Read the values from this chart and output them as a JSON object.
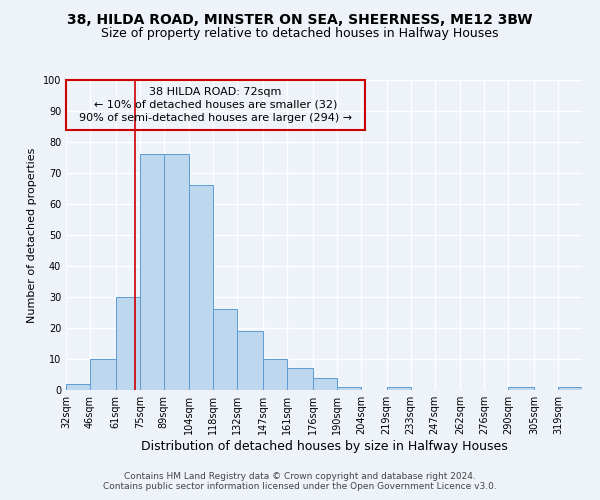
{
  "title": "38, HILDA ROAD, MINSTER ON SEA, SHEERNESS, ME12 3BW",
  "subtitle": "Size of property relative to detached houses in Halfway Houses",
  "xlabel": "Distribution of detached houses by size in Halfway Houses",
  "ylabel": "Number of detached properties",
  "bin_edges": [
    32,
    46,
    61,
    75,
    89,
    104,
    118,
    132,
    147,
    161,
    176,
    190,
    204,
    219,
    233,
    247,
    262,
    276,
    290,
    305,
    319
  ],
  "bin_labels": [
    "32sqm",
    "46sqm",
    "61sqm",
    "75sqm",
    "89sqm",
    "104sqm",
    "118sqm",
    "132sqm",
    "147sqm",
    "161sqm",
    "176sqm",
    "190sqm",
    "204sqm",
    "219sqm",
    "233sqm",
    "247sqm",
    "262sqm",
    "276sqm",
    "290sqm",
    "305sqm",
    "319sqm"
  ],
  "counts": [
    2,
    10,
    30,
    76,
    76,
    66,
    26,
    19,
    10,
    7,
    4,
    1,
    0,
    1,
    0,
    0,
    0,
    0,
    1,
    0,
    1
  ],
  "bar_color": "#bdd7ee",
  "bar_edge_color": "#5b9bd5",
  "vline_x": 72,
  "vline_color": "#cc0000",
  "annotation_line1": "38 HILDA ROAD: 72sqm",
  "annotation_line2": "← 10% of detached houses are smaller (32)",
  "annotation_line3": "90% of semi-detached houses are larger (294) →",
  "box_edge_color": "#cc0000",
  "ylim": [
    0,
    100
  ],
  "yticks": [
    0,
    10,
    20,
    30,
    40,
    50,
    60,
    70,
    80,
    90,
    100
  ],
  "background_color": "#eef2f9",
  "grid_color": "#ffffff",
  "footer_line1": "Contains HM Land Registry data © Crown copyright and database right 2024.",
  "footer_line2": "Contains public sector information licensed under the Open Government Licence v3.0.",
  "title_fontsize": 10,
  "subtitle_fontsize": 9,
  "xlabel_fontsize": 9,
  "ylabel_fontsize": 8,
  "tick_fontsize": 7,
  "annotation_fontsize": 8,
  "footer_fontsize": 6.5
}
